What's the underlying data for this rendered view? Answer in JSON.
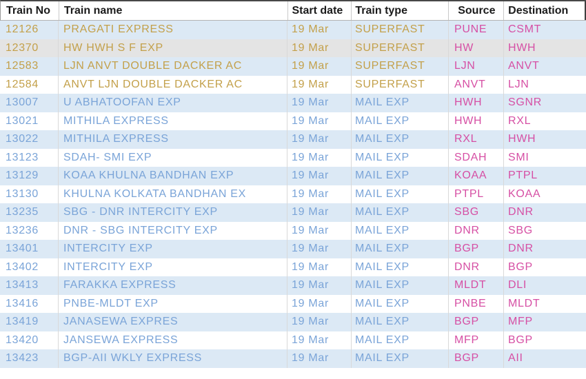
{
  "colors": {
    "gold": "#c3a04a",
    "blue": "#7aa4d8",
    "pink": "#d64fa4",
    "row_blue": "#dce9f5",
    "row_white": "#ffffff",
    "row_hover": "#e4e4e4"
  },
  "table": {
    "columns": [
      {
        "label": "Train No"
      },
      {
        "label": "Train name"
      },
      {
        "label": "Start date"
      },
      {
        "label": "Train type"
      },
      {
        "label": "Source"
      },
      {
        "label": "Destination"
      }
    ],
    "rows": [
      {
        "no": "12126",
        "name": "PRAGATI EXPRESS",
        "date": "19 Mar",
        "type": "SUPERFAST",
        "source": "PUNE",
        "dest": "CSMT",
        "style": "superfast",
        "highlight": false
      },
      {
        "no": "12370",
        "name": "HW HWH S F EXP",
        "date": "19 Mar",
        "type": "SUPERFAST",
        "source": "HW",
        "dest": "HWH",
        "style": "superfast",
        "highlight": true
      },
      {
        "no": "12583",
        "name": "LJN ANVT DOUBLE DACKER AC",
        "date": "19 Mar",
        "type": "SUPERFAST",
        "source": "LJN",
        "dest": "ANVT",
        "style": "superfast",
        "highlight": false
      },
      {
        "no": "12584",
        "name": "ANVT LJN DOUBLE DACKER AC",
        "date": "19 Mar",
        "type": "SUPERFAST",
        "source": "ANVT",
        "dest": "LJN",
        "style": "superfast",
        "highlight": false
      },
      {
        "no": "13007",
        "name": "U ABHATOOFAN EXP",
        "date": "19 Mar",
        "type": "MAIL EXP",
        "source": "HWH",
        "dest": "SGNR",
        "style": "mail",
        "highlight": false
      },
      {
        "no": "13021",
        "name": "MITHILA EXPRESS",
        "date": "19 Mar",
        "type": "MAIL EXP",
        "source": "HWH",
        "dest": "RXL",
        "style": "mail",
        "highlight": false
      },
      {
        "no": "13022",
        "name": "MITHILA EXPRESS",
        "date": "19 Mar",
        "type": "MAIL EXP",
        "source": "RXL",
        "dest": "HWH",
        "style": "mail",
        "highlight": false
      },
      {
        "no": "13123",
        "name": "SDAH- SMI EXP",
        "date": "19 Mar",
        "type": "MAIL EXP",
        "source": "SDAH",
        "dest": "SMI",
        "style": "mail",
        "highlight": false
      },
      {
        "no": "13129",
        "name": "KOAA KHULNA BANDHAN EXP",
        "date": "19 Mar",
        "type": "MAIL EXP",
        "source": "KOAA",
        "dest": "PTPL",
        "style": "mail",
        "highlight": false
      },
      {
        "no": "13130",
        "name": "KHULNA KOLKATA BANDHAN EX",
        "date": "19 Mar",
        "type": "MAIL EXP",
        "source": "PTPL",
        "dest": "KOAA",
        "style": "mail",
        "highlight": false
      },
      {
        "no": "13235",
        "name": "SBG - DNR INTERCITY EXP",
        "date": "19 Mar",
        "type": "MAIL EXP",
        "source": "SBG",
        "dest": "DNR",
        "style": "mail",
        "highlight": false
      },
      {
        "no": "13236",
        "name": "DNR - SBG INTERCITY EXP",
        "date": "19 Mar",
        "type": "MAIL EXP",
        "source": "DNR",
        "dest": "SBG",
        "style": "mail",
        "highlight": false
      },
      {
        "no": "13401",
        "name": "INTERCITY EXP",
        "date": "19 Mar",
        "type": "MAIL EXP",
        "source": "BGP",
        "dest": "DNR",
        "style": "mail",
        "highlight": false
      },
      {
        "no": "13402",
        "name": "INTERCITY EXP",
        "date": "19 Mar",
        "type": "MAIL EXP",
        "source": "DNR",
        "dest": "BGP",
        "style": "mail",
        "highlight": false
      },
      {
        "no": "13413",
        "name": "FARAKKA EXPRESS",
        "date": "19 Mar",
        "type": "MAIL EXP",
        "source": "MLDT",
        "dest": "DLI",
        "style": "mail",
        "highlight": false
      },
      {
        "no": "13416",
        "name": "PNBE-MLDT EXP",
        "date": "19 Mar",
        "type": "MAIL EXP",
        "source": "PNBE",
        "dest": "MLDT",
        "style": "mail",
        "highlight": false
      },
      {
        "no": "13419",
        "name": "JANASEWA EXPRES",
        "date": "19 Mar",
        "type": "MAIL EXP",
        "source": "BGP",
        "dest": "MFP",
        "style": "mail",
        "highlight": false
      },
      {
        "no": "13420",
        "name": "JANSEWA EXPRESS",
        "date": "19 Mar",
        "type": "MAIL EXP",
        "source": "MFP",
        "dest": "BGP",
        "style": "mail",
        "highlight": false
      },
      {
        "no": "13423",
        "name": "BGP-AII WKLY EXPRESS",
        "date": "19 Mar",
        "type": "MAIL EXP",
        "source": "BGP",
        "dest": "AII",
        "style": "mail",
        "highlight": false
      }
    ]
  }
}
